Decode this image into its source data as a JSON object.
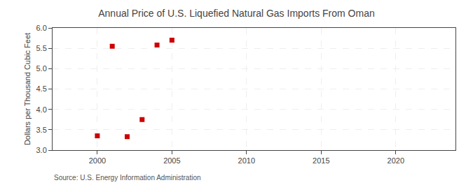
{
  "chart_data": {
    "type": "scatter",
    "title": "Annual Price of U.S. Liquefied Natural Gas Imports From Oman",
    "ylabel": "Dollars per Thousand Cubic Feet",
    "annotations": [
      "Source: U.S. Energy Information Administration"
    ],
    "x": [
      2000,
      2001,
      2002,
      2003,
      2004,
      2005
    ],
    "values": [
      3.35,
      5.55,
      3.33,
      3.75,
      5.58,
      5.7
    ],
    "color": "#cc0000",
    "marker": "square",
    "xlim": [
      1997,
      2024
    ],
    "ylim": [
      3.0,
      6.0
    ],
    "xticks": [
      2000,
      2005,
      2010,
      2015,
      2020
    ],
    "yticks": [
      {
        "value": 3.0,
        "label": "3.0"
      },
      3.5,
      {
        "value": 4.0,
        "label": "4.0"
      },
      4.5,
      {
        "value": 5.0,
        "label": "5.0"
      },
      5.5,
      {
        "value": 6.0,
        "label": "6.0"
      }
    ],
    "grid": true
  }
}
